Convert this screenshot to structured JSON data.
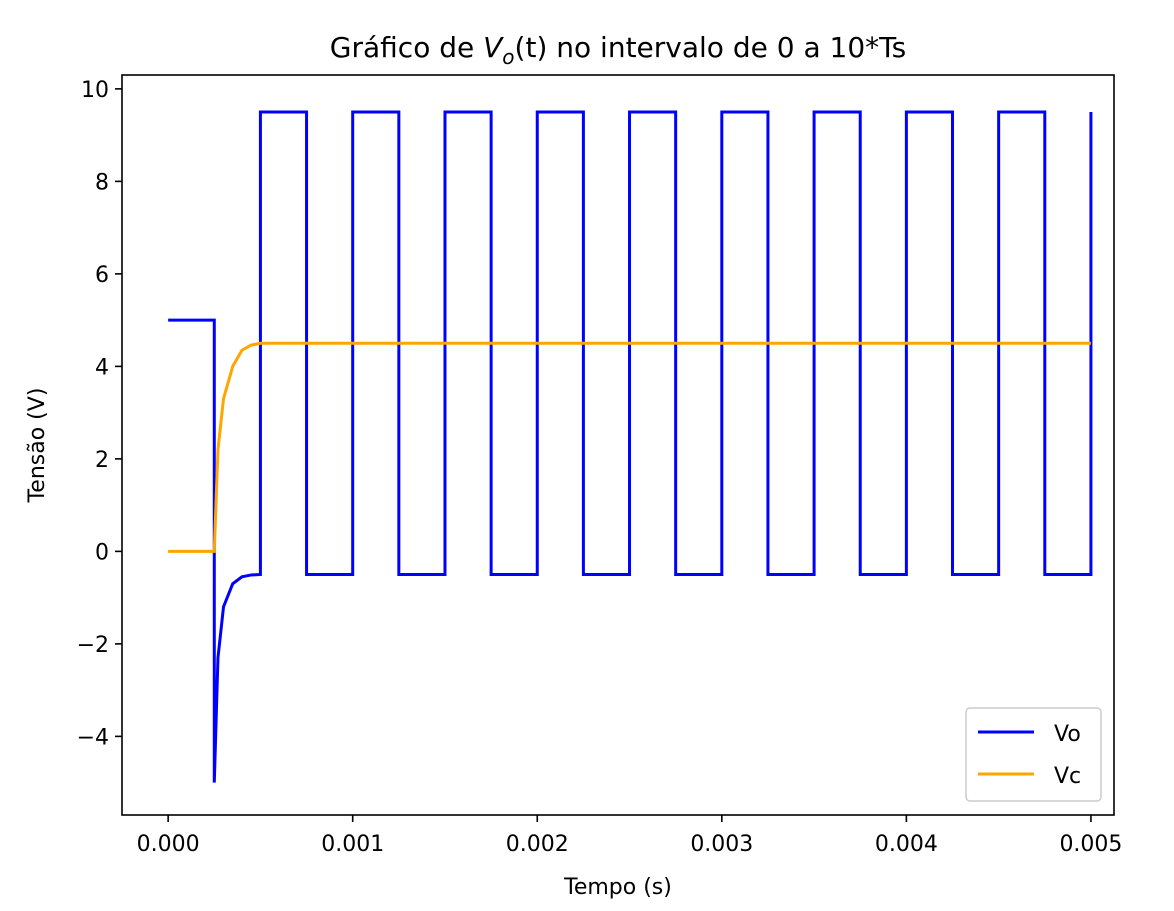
{
  "chart_data": {
    "type": "line",
    "title_prefix": "Gráfico de ",
    "title_var": "V",
    "title_sub": "o",
    "title_arg": "(t)",
    "title_suffix": " no intervalo de 0 a 10*Ts",
    "xlabel": "Tempo (s)",
    "ylabel": "Tensão (V)",
    "xlim": [
      -0.00025,
      0.005125
    ],
    "ylim": [
      -5.7,
      10.3
    ],
    "xticks": [
      0.0,
      0.001,
      0.002,
      0.003,
      0.004,
      0.005
    ],
    "xtick_labels": [
      "0.000",
      "0.001",
      "0.002",
      "0.003",
      "0.004",
      "0.005"
    ],
    "yticks": [
      -4,
      -2,
      0,
      2,
      4,
      6,
      8,
      10
    ],
    "ytick_labels": [
      "−4",
      "−2",
      "0",
      "2",
      "4",
      "6",
      "8",
      "10"
    ],
    "grid": false,
    "legend_position": "lower-right",
    "series": [
      {
        "name": "Vo",
        "color": "#0000ff",
        "description_points": [
          [
            0.0,
            5.0
          ],
          [
            0.00025,
            5.0
          ],
          [
            0.00025,
            -5.0
          ],
          [
            0.00027,
            -2.3
          ],
          [
            0.0003,
            -1.2
          ],
          [
            0.00035,
            -0.7
          ],
          [
            0.0004,
            -0.55
          ],
          [
            0.00045,
            -0.51
          ],
          [
            0.0005,
            -0.5
          ],
          [
            0.0005,
            9.5
          ],
          [
            0.00075,
            9.5
          ],
          [
            0.00075,
            -0.5
          ],
          [
            0.001,
            -0.5
          ],
          [
            0.001,
            9.5
          ],
          [
            0.00125,
            9.5
          ],
          [
            0.00125,
            -0.5
          ],
          [
            0.0015,
            -0.5
          ],
          [
            0.0015,
            9.5
          ],
          [
            0.00175,
            9.5
          ],
          [
            0.00175,
            -0.5
          ],
          [
            0.002,
            -0.5
          ],
          [
            0.002,
            9.5
          ],
          [
            0.00225,
            9.5
          ],
          [
            0.00225,
            -0.5
          ],
          [
            0.0025,
            -0.5
          ],
          [
            0.0025,
            9.5
          ],
          [
            0.00275,
            9.5
          ],
          [
            0.00275,
            -0.5
          ],
          [
            0.003,
            -0.5
          ],
          [
            0.003,
            9.5
          ],
          [
            0.00325,
            9.5
          ],
          [
            0.00325,
            -0.5
          ],
          [
            0.0035,
            -0.5
          ],
          [
            0.0035,
            9.5
          ],
          [
            0.00375,
            9.5
          ],
          [
            0.00375,
            -0.5
          ],
          [
            0.004,
            -0.5
          ],
          [
            0.004,
            9.5
          ],
          [
            0.00425,
            9.5
          ],
          [
            0.00425,
            -0.5
          ],
          [
            0.0045,
            -0.5
          ],
          [
            0.0045,
            9.5
          ],
          [
            0.00475,
            9.5
          ],
          [
            0.00475,
            -0.5
          ],
          [
            0.005,
            -0.5
          ],
          [
            0.005,
            9.5
          ]
        ]
      },
      {
        "name": "Vc",
        "color": "#ffa500",
        "description_points": [
          [
            0.0,
            0.0
          ],
          [
            0.00025,
            0.0
          ],
          [
            0.00027,
            2.2
          ],
          [
            0.0003,
            3.3
          ],
          [
            0.00035,
            4.0
          ],
          [
            0.0004,
            4.35
          ],
          [
            0.00045,
            4.46
          ],
          [
            0.0005,
            4.5
          ],
          [
            0.005,
            4.5
          ]
        ]
      }
    ]
  }
}
